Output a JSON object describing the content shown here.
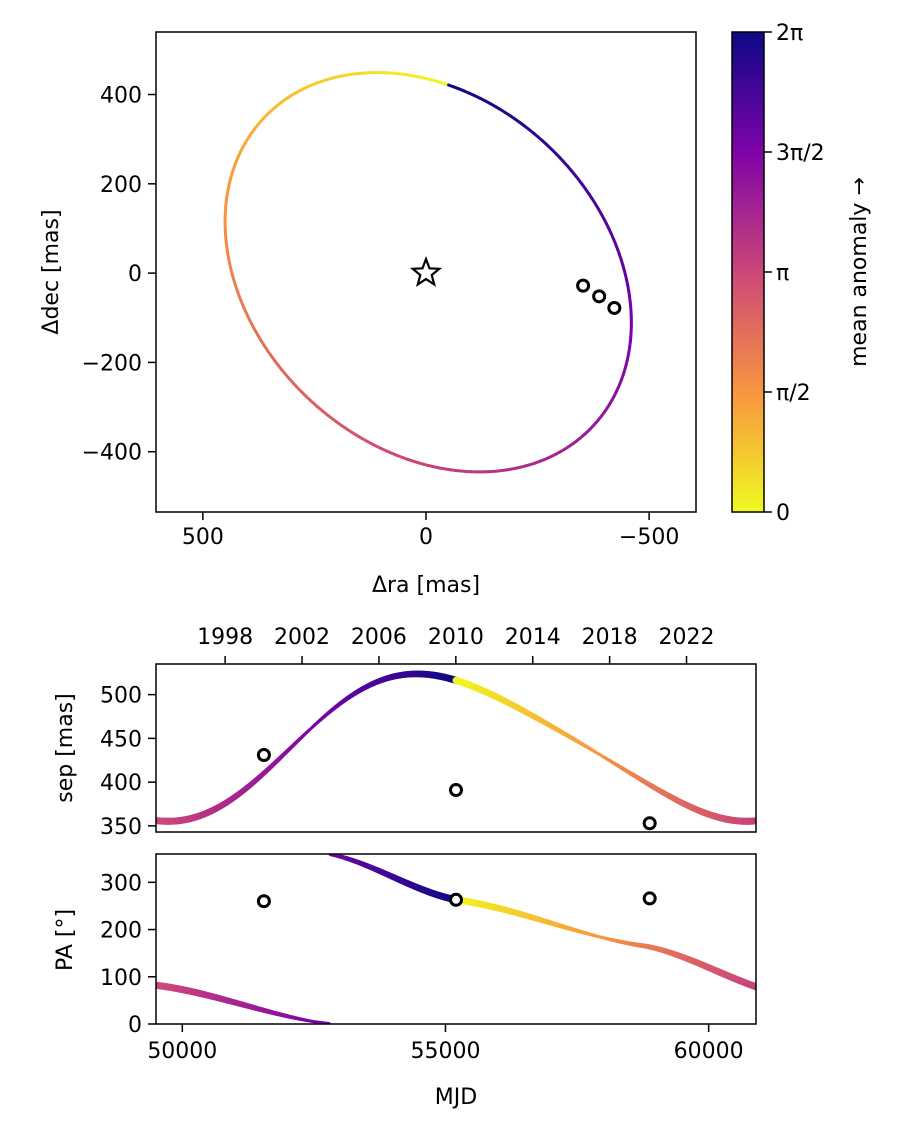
{
  "chart_data": [
    {
      "type": "line",
      "panel": "orbit",
      "xlabel": "Δra [mas]",
      "ylabel": "Δdec [mas]",
      "xlim": [
        605,
        -605
      ],
      "ylim": [
        -535,
        540
      ],
      "x_ticks": [
        500,
        0,
        -500
      ],
      "x_tick_labels": [
        "500",
        "0",
        "−500"
      ],
      "y_ticks": [
        -400,
        -200,
        0,
        200,
        400
      ],
      "y_tick_labels": [
        "−400",
        "−200",
        "0",
        "200",
        "400"
      ],
      "orbit_fit": {
        "center": [
          -5,
          2
        ],
        "semi_major": 505,
        "semi_minor": 390,
        "rotation_deg": 43,
        "anomaly_start_deg": 60
      },
      "star": {
        "x": 0,
        "y": 0
      },
      "observations": [
        {
          "x": -352,
          "y": -28
        },
        {
          "x": -388,
          "y": -52
        },
        {
          "x": -422,
          "y": -78
        }
      ],
      "colorbar": {
        "label": "mean anomaly →",
        "ticks": [
          0,
          1.5708,
          3.1416,
          4.7124,
          6.2832
        ],
        "tick_labels": [
          "0",
          "π/2",
          "π",
          "3π/2",
          "2π"
        ]
      }
    },
    {
      "type": "line",
      "panel": "separation",
      "ylabel": "sep [mas]",
      "xlim": [
        49500,
        60900
      ],
      "ylim": [
        343,
        535
      ],
      "y_ticks": [
        350,
        400,
        450,
        500
      ],
      "y_tick_labels": [
        "350",
        "400",
        "450",
        "500"
      ],
      "top_axis_ticks": [
        1998,
        2002,
        2006,
        2010,
        2014,
        2018,
        2022
      ],
      "top_axis_tick_labels": [
        "1998",
        "2002",
        "2006",
        "2010",
        "2014",
        "2018",
        "2022"
      ],
      "curve_fit": {
        "mean": 441,
        "amp": 82,
        "phase": 1.76,
        "amp2": -10,
        "phase2": 0.55
      },
      "observations": [
        {
          "x": 51550,
          "y": 431
        },
        {
          "x": 55200,
          "y": 391
        },
        {
          "x": 58880,
          "y": 353
        }
      ]
    },
    {
      "type": "line",
      "panel": "position_angle",
      "ylabel": "PA [°]",
      "xlabel": "MJD",
      "xlim": [
        49500,
        60900
      ],
      "ylim": [
        0,
        360
      ],
      "x_ticks": [
        50000,
        55000,
        60000
      ],
      "x_tick_labels": [
        "50000",
        "55000",
        "60000"
      ],
      "y_ticks": [
        0,
        100,
        200,
        300
      ],
      "y_tick_labels": [
        "0",
        "100",
        "200",
        "300"
      ],
      "observations": [
        {
          "x": 51550,
          "y": 260
        },
        {
          "x": 55200,
          "y": 263
        },
        {
          "x": 58880,
          "y": 266
        }
      ]
    }
  ],
  "colors": {
    "colormap": [
      "#f0f921",
      "#f89540",
      "#cc4778",
      "#7e03a8",
      "#0d0887"
    ],
    "observation_marker": "#000000",
    "axes": "#000000"
  }
}
